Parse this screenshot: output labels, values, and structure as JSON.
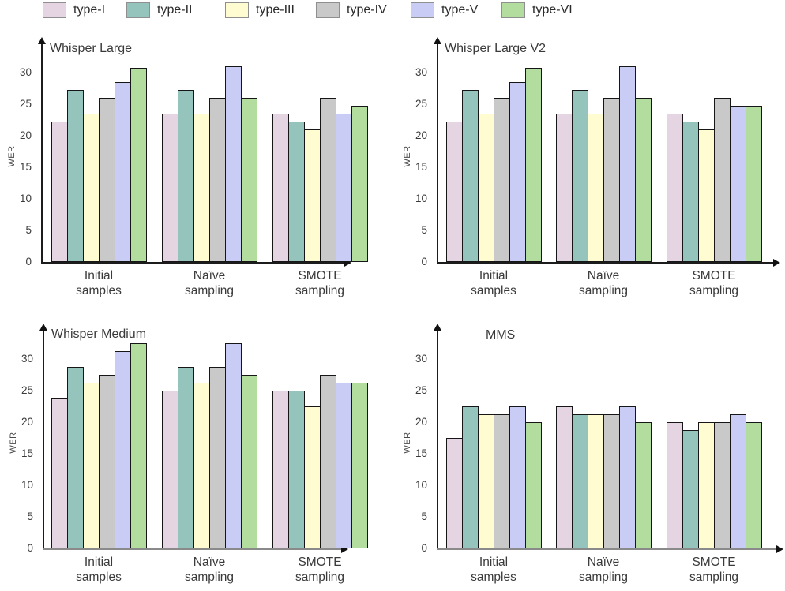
{
  "legend": {
    "items": [
      {
        "label": "type-I",
        "color": "#e5d4e2"
      },
      {
        "label": "type-II",
        "color": "#95c4bc"
      },
      {
        "label": "type-III",
        "color": "#fefcd0"
      },
      {
        "label": "type-IV",
        "color": "#c9c9c9"
      },
      {
        "label": "type-V",
        "color": "#c9ccf4"
      },
      {
        "label": "type-VI",
        "color": "#b3dd9e"
      }
    ]
  },
  "chart_data": [
    {
      "type": "bar",
      "title": "Whisper Large",
      "ylabel": "WER",
      "xlabel": "",
      "categories": [
        "Initial\nsamples",
        "Naïve\nsampling",
        "SMOTE\nsampling"
      ],
      "yticks": [
        0,
        5,
        10,
        15,
        20,
        25,
        30
      ],
      "ylim": [
        0,
        34
      ],
      "grid": false,
      "legend_position": "shared-top",
      "series": [
        {
          "name": "type-I",
          "values": [
            22.2,
            23.5,
            23.5
          ]
        },
        {
          "name": "type-II",
          "values": [
            27.2,
            27.2,
            22.2
          ]
        },
        {
          "name": "type-III",
          "values": [
            23.5,
            23.5,
            21.0
          ]
        },
        {
          "name": "type-IV",
          "values": [
            26.0,
            26.0,
            26.0
          ]
        },
        {
          "name": "type-V",
          "values": [
            28.5,
            31.0,
            23.5
          ]
        },
        {
          "name": "type-VI",
          "values": [
            30.8,
            26.0,
            24.8
          ]
        }
      ]
    },
    {
      "type": "bar",
      "title": "Whisper Large V2",
      "ylabel": "WER",
      "xlabel": "",
      "categories": [
        "Initial\nsamples",
        "Naïve\nsampling",
        "SMOTE\nsampling"
      ],
      "yticks": [
        0,
        5,
        10,
        15,
        20,
        25,
        30
      ],
      "ylim": [
        0,
        34
      ],
      "grid": false,
      "legend_position": "shared-top",
      "series": [
        {
          "name": "type-I",
          "values": [
            22.2,
            23.5,
            23.5
          ]
        },
        {
          "name": "type-II",
          "values": [
            27.2,
            27.2,
            22.2
          ]
        },
        {
          "name": "type-III",
          "values": [
            23.5,
            23.5,
            21.0
          ]
        },
        {
          "name": "type-IV",
          "values": [
            26.0,
            26.0,
            26.0
          ]
        },
        {
          "name": "type-V",
          "values": [
            28.5,
            31.0,
            24.8
          ]
        },
        {
          "name": "type-VI",
          "values": [
            30.8,
            26.0,
            24.8
          ]
        }
      ]
    },
    {
      "type": "bar",
      "title": "Whisper Medium",
      "ylabel": "WER",
      "xlabel": "",
      "categories": [
        "Initial\nsamples",
        "Naïve\nsampling",
        "SMOTE\nsampling"
      ],
      "yticks": [
        0,
        5,
        10,
        15,
        20,
        25,
        30
      ],
      "ylim": [
        0,
        34
      ],
      "grid": false,
      "legend_position": "shared-top",
      "series": [
        {
          "name": "type-I",
          "values": [
            23.8,
            25.0,
            25.0
          ]
        },
        {
          "name": "type-II",
          "values": [
            28.7,
            28.7,
            25.0
          ]
        },
        {
          "name": "type-III",
          "values": [
            26.2,
            26.2,
            22.5
          ]
        },
        {
          "name": "type-IV",
          "values": [
            27.5,
            28.7,
            27.5
          ]
        },
        {
          "name": "type-V",
          "values": [
            31.2,
            32.5,
            26.2
          ]
        },
        {
          "name": "type-VI",
          "values": [
            32.5,
            27.5,
            26.2
          ]
        }
      ]
    },
    {
      "type": "bar",
      "title": "MMS",
      "ylabel": "WER",
      "xlabel": "",
      "categories": [
        "Initial\nsamples",
        "Naïve\nsampling",
        "SMOTE\nsampling"
      ],
      "yticks": [
        0,
        5,
        10,
        15,
        20,
        25,
        30
      ],
      "ylim": [
        0,
        34
      ],
      "grid": false,
      "legend_position": "shared-top",
      "series": [
        {
          "name": "type-I",
          "values": [
            17.5,
            22.5,
            20.0
          ]
        },
        {
          "name": "type-II",
          "values": [
            22.5,
            21.2,
            18.8
          ]
        },
        {
          "name": "type-III",
          "values": [
            21.2,
            21.2,
            20.0
          ]
        },
        {
          "name": "type-IV",
          "values": [
            21.2,
            21.2,
            20.0
          ]
        },
        {
          "name": "type-V",
          "values": [
            22.5,
            22.5,
            21.2
          ]
        },
        {
          "name": "type-VI",
          "values": [
            20.0,
            20.0,
            20.0
          ]
        }
      ]
    }
  ]
}
